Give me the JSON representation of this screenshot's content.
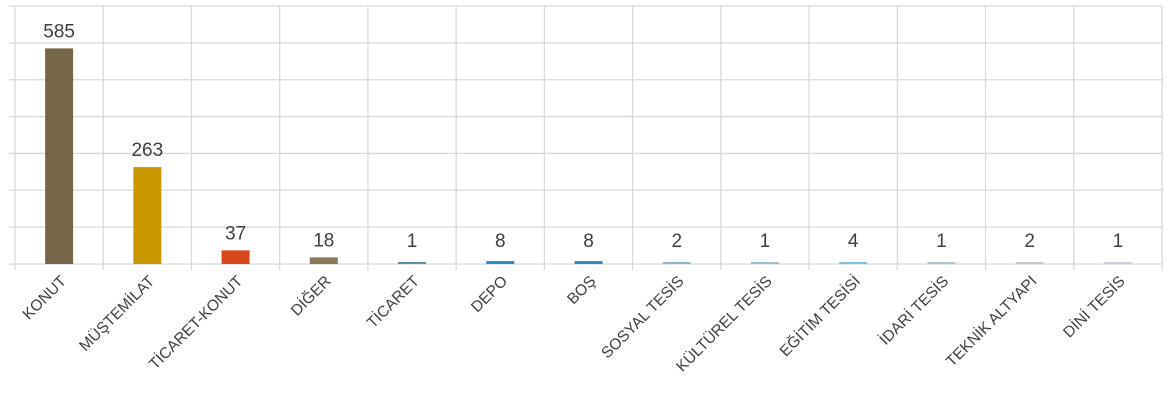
{
  "chart_data": {
    "type": "bar",
    "title": "",
    "xlabel": "",
    "ylabel": "",
    "categories": [
      "KONUT",
      "MÜŞTEMİLAT",
      "TİCARET-KONUT",
      "DİĞER",
      "TİCARET",
      "DEPO",
      "BOŞ",
      "SOSYAL TESİS",
      "KÜLTÜREL TESİS",
      "EĞİTİM TESİSİ",
      "İDARİ TESİS",
      "TEKNİK ALTYAPI",
      "DİNİ TESİS"
    ],
    "values": [
      585,
      263,
      37,
      18,
      1,
      8,
      8,
      2,
      1,
      4,
      1,
      2,
      1
    ],
    "data_labels": [
      "585",
      "263",
      "37",
      "18",
      "1",
      "8",
      "8",
      "2",
      "1",
      "4",
      "1",
      "2",
      "1"
    ],
    "colors": [
      "#786649",
      "#c99700",
      "#d9481c",
      "#8b7a5a",
      "#5e8fa8",
      "#2b8fc7",
      "#2b8fc7",
      "#8fb7c8",
      "#9bbfce",
      "#7ec0db",
      "#a9c8d6",
      "#bfcfc4",
      "#c4d4dc"
    ],
    "ylim": [
      0,
      700
    ],
    "y_tick_values": [
      0,
      100,
      200,
      300,
      400,
      500,
      600,
      700
    ],
    "y_tick_labels_visible": false,
    "grid": true,
    "legend": "none"
  }
}
